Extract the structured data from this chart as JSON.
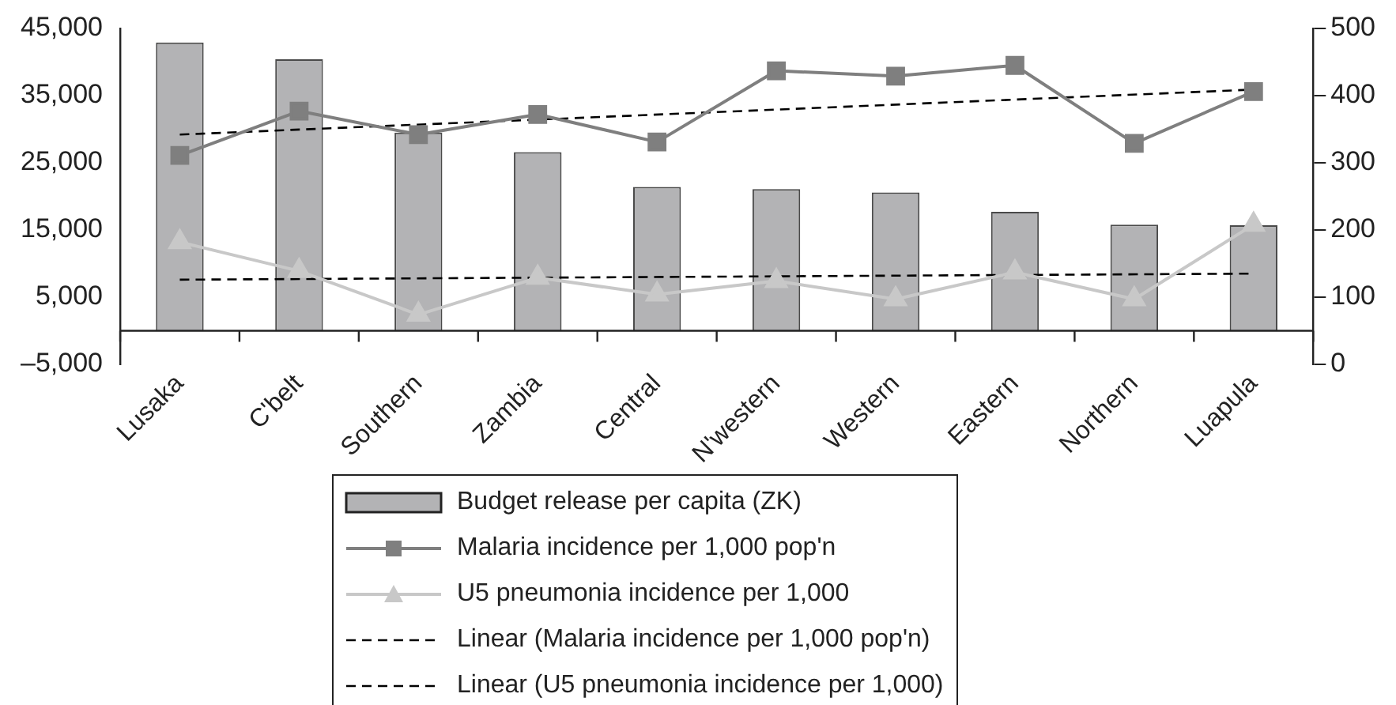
{
  "chart_data": {
    "type": "bar",
    "categories": [
      "Lusaka",
      "C'belt",
      "Southern",
      "Zambia",
      "Central",
      "N'western",
      "Western",
      "Eastern",
      "Northern",
      "Luapula"
    ],
    "series": [
      {
        "name": "Budget release per capita (ZK)",
        "color": "#b3b3b5",
        "values": [
          42900,
          40400,
          29500,
          26600,
          21400,
          21100,
          20600,
          17700,
          15800,
          15700
        ]
      },
      {
        "name": "Malaria incidence per 1,000 pop'n",
        "type": "line",
        "axis": "y2",
        "color": "#7f7f7f",
        "marker": "square",
        "line_style": "solid",
        "values": [
          311,
          377,
          342,
          372,
          331,
          437,
          429,
          445,
          329,
          406
        ]
      },
      {
        "name": "U5 pneumonia incidence per 1,000",
        "type": "line",
        "axis": "y2",
        "color": "#c8c8c8",
        "marker": "triangle",
        "line_style": "solid",
        "values": [
          182,
          139,
          74,
          129,
          104,
          124,
          97,
          137,
          97,
          208
        ]
      },
      {
        "name": "Linear (Malaria incidence per 1,000 pop'n)",
        "type": "line",
        "axis": "y2",
        "color": "#000000",
        "marker": "none",
        "line_style": "dashed",
        "x": [
          "Lusaka",
          "Luapula"
        ],
        "values": [
          342,
          409
        ]
      },
      {
        "name": "Linear (U5 pneumonia incidence per 1,000)",
        "type": "line",
        "axis": "y2",
        "color": "#000000",
        "marker": "none",
        "line_style": "dashed",
        "x": [
          "Lusaka",
          "Luapula"
        ],
        "values": [
          126,
          135
        ]
      }
    ],
    "ylim": [
      -5000,
      45000
    ],
    "yticks": [
      {
        "value": -5000,
        "label": "–5,000"
      },
      {
        "value": 5000,
        "label": "5,000"
      },
      {
        "value": 15000,
        "label": "15,000"
      },
      {
        "value": 25000,
        "label": "25,000"
      },
      {
        "value": 35000,
        "label": "35,000"
      },
      {
        "value": 45000,
        "label": "45,000"
      }
    ],
    "y2lim": [
      0,
      500
    ],
    "y2ticks": [
      0,
      100,
      200,
      300,
      400,
      500
    ],
    "grid": false,
    "legend": "bottom"
  }
}
